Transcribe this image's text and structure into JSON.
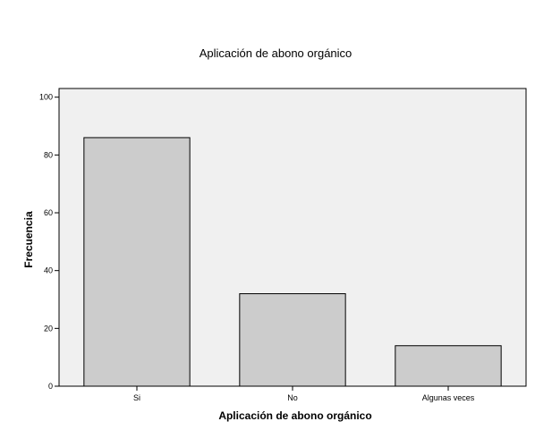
{
  "chart_data": {
    "type": "bar",
    "title": "Aplicación de abono orgánico",
    "xlabel": "Aplicación de abono orgánico",
    "ylabel": "Frecuencia",
    "categories": [
      "Si",
      "No",
      "Algunas veces"
    ],
    "values": [
      86,
      32,
      14
    ],
    "ylim": [
      0,
      103
    ],
    "yticks": [
      "0",
      "20",
      "40",
      "60",
      "80",
      "100"
    ],
    "grid": false,
    "legend": "none",
    "colors": {
      "plot_background": "#f0f0f0",
      "bar_fill": "#cccccc",
      "bar_stroke": "#000000"
    }
  }
}
